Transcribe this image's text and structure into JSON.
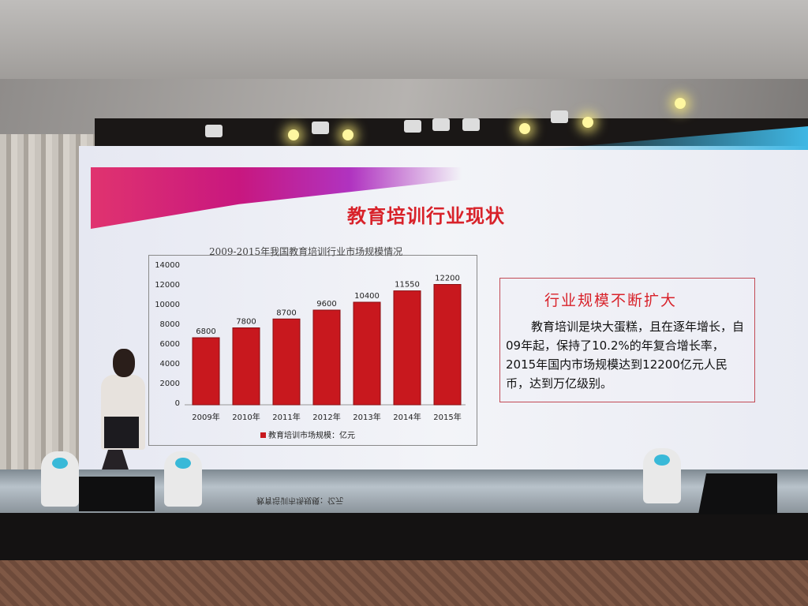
{
  "slide": {
    "title": "教育培训行业现状",
    "textbox_heading": "行业规模不断扩大",
    "textbox_body": "教育培训是块大蛋糕，且在逐年增长，自09年起，保持了10.2%的年复合增长率，2015年国内市场规模达到12200亿元人民币，达到万亿级别。"
  },
  "chart_data": {
    "type": "bar",
    "title": "2009-2015年我国教育培训行业市场规模情况",
    "categories": [
      "2009年",
      "2010年",
      "2011年",
      "2012年",
      "2013年",
      "2014年",
      "2015年"
    ],
    "series": [
      {
        "name": "教育培训市场规模：亿元",
        "values": [
          6800,
          7800,
          8700,
          9600,
          10400,
          11550,
          12200
        ],
        "color": "#c8181e"
      }
    ],
    "yticks": [
      "0",
      "2000",
      "4000",
      "6000",
      "8000",
      "10000",
      "12000",
      "14000"
    ],
    "ylim": [
      0,
      14000
    ],
    "legend": "bottom",
    "grid": false
  },
  "stage_reflection": "教育培训市场规模：亿元"
}
